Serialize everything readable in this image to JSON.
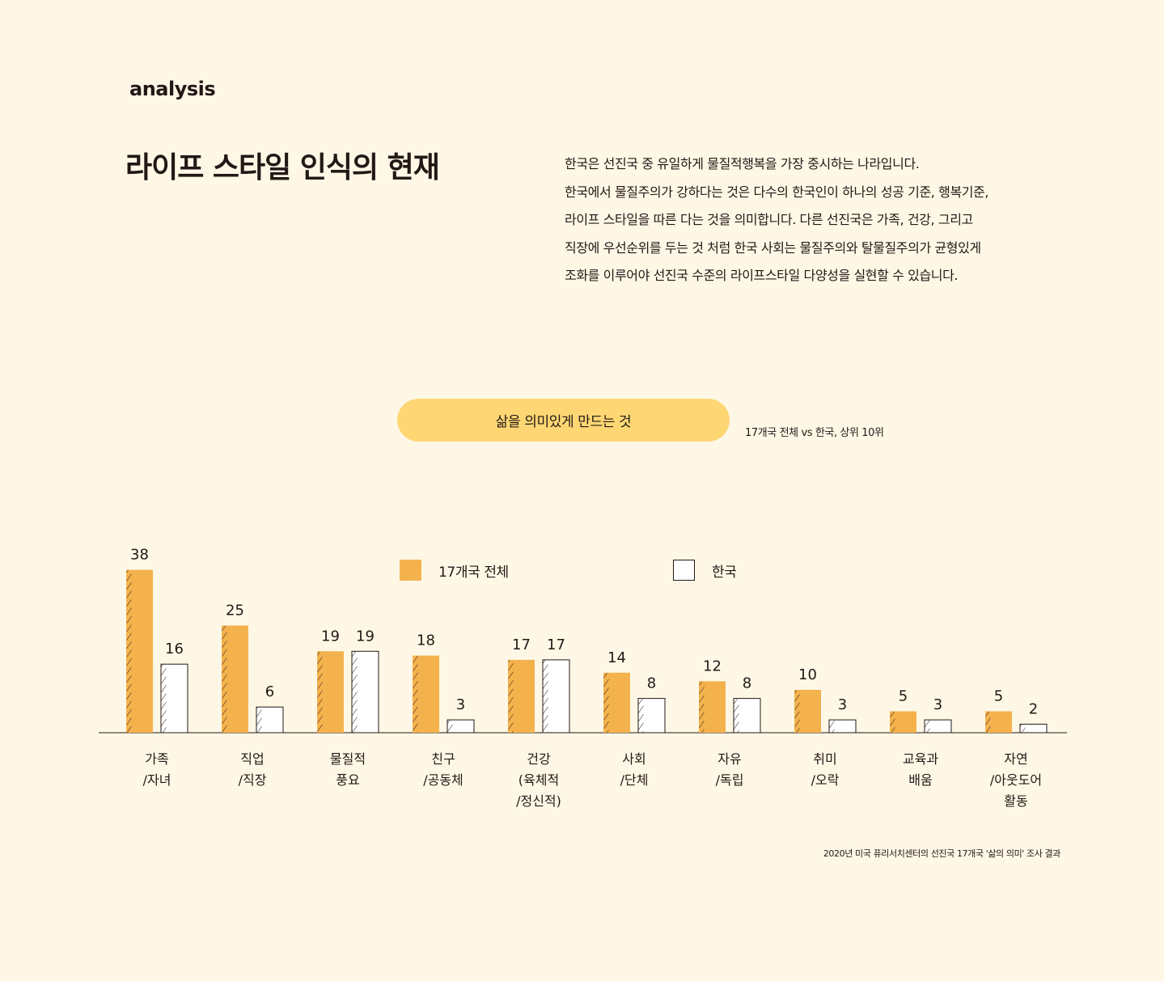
{
  "section_label": "analysis",
  "headline": "라이프 스타일 인식의 현재",
  "intro_lines": [
    "한국은 선진국 중 유일하게 물질적행복을 가장 중시하는 나라입니다.",
    "한국에서 물질주의가 강하다는 것은 다수의 한국인이 하나의 성공 기준, 행복기준,",
    "라이프 스타일을 따른 다는 것을 의미합니다.  다른 선진국은 가족, 건강, 그리고",
    "직장에 우선순위를 두는 것 처럼 한국 사회는 물질주의와 탈물질주의가 균형있게",
    "조화를 이루어야 선진국 수준의 라이프스타일 다양성을 실현할 수 있습니다."
  ],
  "pill_title": "삶을 의미있게 만드는 것",
  "chart_note": "17개국 전체 vs 한국,  상위 10위",
  "source": "2020년 미국 퓨리서치센터의 선진국 17개국 '삶의 의미' 조사 결과",
  "colors": {
    "background": "#fef7e6",
    "accent": "#f4b24d",
    "pill": "#fed774",
    "text": "#231815"
  },
  "chart_data": {
    "type": "bar",
    "categories": [
      [
        "가족",
        "/자녀"
      ],
      [
        "직업",
        "/직장"
      ],
      [
        "물질적",
        "풍요"
      ],
      [
        "친구",
        "/공동체"
      ],
      [
        "건강",
        "(육체적",
        "/정신적)"
      ],
      [
        "사회",
        "/단체"
      ],
      [
        "자유",
        "/독립"
      ],
      [
        "취미",
        "/오락"
      ],
      [
        "교육과",
        "배움"
      ],
      [
        "자연",
        "/아웃도어",
        "활동"
      ]
    ],
    "series": [
      {
        "name": "17개국 전체",
        "color": "#f4b24d",
        "values": [
          38,
          25,
          19,
          18,
          17,
          14,
          12,
          10,
          5,
          5
        ]
      },
      {
        "name": "한국",
        "color": "#ffffff",
        "values": [
          16,
          6,
          19,
          3,
          17,
          8,
          8,
          3,
          3,
          2
        ]
      }
    ],
    "ylim": [
      0,
      40
    ],
    "grid": false,
    "legend": "top"
  }
}
